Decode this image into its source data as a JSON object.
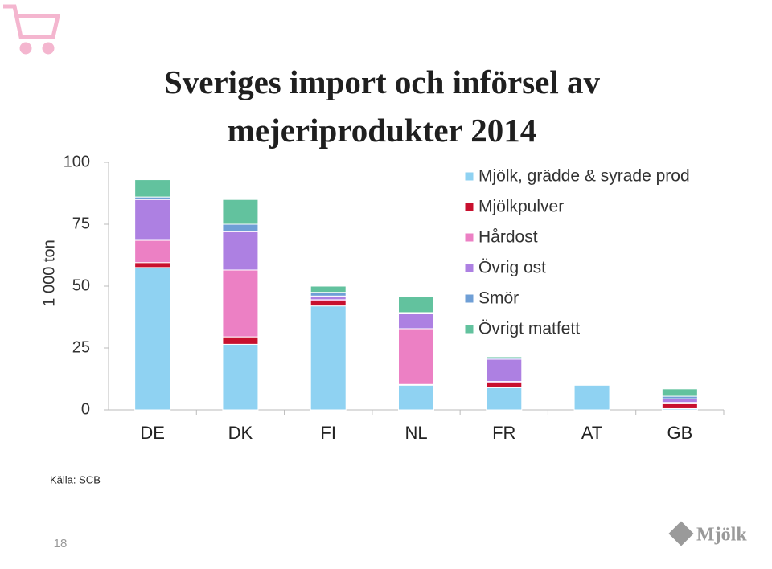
{
  "chart_data": {
    "type": "stacked_bar",
    "title": "Sveriges import och införsel av mejeriprodukter 2014",
    "y_label": "1 000 ton",
    "categories": [
      "DE",
      "DK",
      "FI",
      "NL",
      "FR",
      "AT",
      "GB"
    ],
    "series": [
      {
        "name": "Mjölk, grädde & syrade prod",
        "color": "#8fd2f2",
        "values": [
          57.5,
          26.5,
          42,
          10,
          9,
          10,
          0.5
        ]
      },
      {
        "name": "Mjölkpulver",
        "color": "#c8102e",
        "values": [
          2,
          3,
          2,
          0.3,
          2,
          0.3,
          2
        ]
      },
      {
        "name": "Hårdost",
        "color": "#ec80c4",
        "values": [
          9,
          27,
          0.5,
          22.5,
          0.5,
          0.3,
          0.5
        ]
      },
      {
        "name": "Övrig ost",
        "color": "#ad80e2",
        "values": [
          16.5,
          15.5,
          1.5,
          6,
          9,
          0.3,
          1.5
        ]
      },
      {
        "name": "Smör",
        "color": "#6f9fd6",
        "values": [
          1,
          3,
          1.5,
          0.5,
          0.5,
          0.2,
          1
        ]
      },
      {
        "name": "Övrigt matfett",
        "color": "#62c29e",
        "values": [
          7,
          10,
          2.5,
          6.5,
          0.5,
          0.2,
          3
        ]
      }
    ],
    "ylim": [
      0,
      100
    ],
    "yticks": [
      0,
      25,
      50,
      75,
      100
    ],
    "legend": "top-right"
  },
  "footer": {
    "source": "Källa: SCB",
    "page_number": "18",
    "logo": "Mjölk"
  }
}
